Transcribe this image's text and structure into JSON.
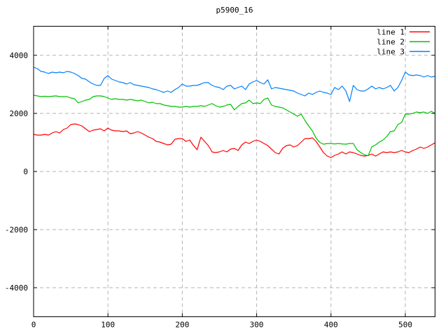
{
  "chart_data": {
    "type": "line",
    "title": "p5900_16",
    "xlabel": "",
    "ylabel": "",
    "xlim": [
      0,
      540
    ],
    "ylim": [
      -5000,
      5000
    ],
    "xticks": [
      0,
      100,
      200,
      300,
      400,
      500
    ],
    "yticks": [
      -4000,
      -2000,
      0,
      2000,
      4000
    ],
    "grid": true,
    "grid_color": "#b3b3b3",
    "border_color": "#000000",
    "background": "#ffffff",
    "legend_position": "top-right-inside",
    "x": [
      0,
      5,
      10,
      15,
      20,
      25,
      30,
      35,
      40,
      45,
      50,
      55,
      60,
      65,
      70,
      75,
      80,
      85,
      90,
      95,
      100,
      105,
      110,
      115,
      120,
      125,
      130,
      135,
      140,
      145,
      150,
      155,
      160,
      165,
      170,
      175,
      180,
      185,
      190,
      195,
      200,
      205,
      210,
      215,
      220,
      225,
      230,
      235,
      240,
      245,
      250,
      255,
      260,
      265,
      270,
      275,
      280,
      285,
      290,
      295,
      300,
      305,
      310,
      315,
      320,
      325,
      330,
      335,
      340,
      345,
      350,
      355,
      360,
      365,
      370,
      375,
      380,
      385,
      390,
      395,
      400,
      405,
      410,
      415,
      420,
      425,
      430,
      435,
      440,
      445,
      450,
      455,
      460,
      465,
      470,
      475,
      480,
      485,
      490,
      495,
      500,
      505,
      510,
      515,
      520,
      525,
      530,
      535,
      540
    ],
    "series": [
      {
        "name": "line 1",
        "color": "#ff0000",
        "values": [
          1277,
          1253,
          1253,
          1277,
          1253,
          1325,
          1373,
          1325,
          1446,
          1494,
          1614,
          1639,
          1614,
          1566,
          1470,
          1373,
          1422,
          1446,
          1470,
          1397,
          1494,
          1422,
          1397,
          1397,
          1373,
          1397,
          1301,
          1325,
          1373,
          1325,
          1253,
          1181,
          1132,
          1036,
          1012,
          964,
          916,
          940,
          1108,
          1132,
          1132,
          1036,
          1084,
          900,
          750,
          1180,
          1036,
          892,
          675,
          651,
          675,
          723,
          675,
          771,
          795,
          723,
          916,
          1012,
          964,
          1036,
          1084,
          1036,
          964,
          892,
          771,
          651,
          602,
          795,
          892,
          916,
          843,
          892,
          1012,
          1132,
          1132,
          1156,
          1036,
          843,
          651,
          530,
          482,
          554,
          602,
          675,
          602,
          675,
          651,
          602,
          554,
          530,
          554,
          602,
          530,
          602,
          675,
          651,
          675,
          651,
          675,
          723,
          675,
          651,
          723,
          771,
          843,
          795,
          843,
          916,
          988
        ]
      },
      {
        "name": "line 2",
        "color": "#00c000",
        "values": [
          2627,
          2602,
          2578,
          2590,
          2578,
          2590,
          2602,
          2578,
          2578,
          2578,
          2530,
          2506,
          2361,
          2410,
          2458,
          2482,
          2578,
          2602,
          2602,
          2578,
          2530,
          2482,
          2506,
          2482,
          2482,
          2458,
          2482,
          2458,
          2434,
          2458,
          2410,
          2361,
          2386,
          2337,
          2337,
          2289,
          2265,
          2241,
          2241,
          2217,
          2217,
          2241,
          2217,
          2241,
          2241,
          2265,
          2241,
          2289,
          2337,
          2265,
          2217,
          2241,
          2289,
          2313,
          2120,
          2241,
          2337,
          2361,
          2458,
          2337,
          2361,
          2337,
          2482,
          2530,
          2289,
          2241,
          2217,
          2193,
          2120,
          2048,
          1976,
          1904,
          1976,
          1759,
          1566,
          1398,
          1150,
          1000,
          940,
          964,
          964,
          950,
          964,
          950,
          940,
          964,
          964,
          750,
          651,
          580,
          540,
          850,
          916,
          1012,
          1084,
          1204,
          1373,
          1397,
          1614,
          1687,
          1976,
          1976,
          2000,
          2048,
          2024,
          2048,
          2000,
          2072,
          2000
        ]
      },
      {
        "name": "line 3",
        "color": "#0080ff",
        "values": [
          3590,
          3543,
          3446,
          3422,
          3374,
          3422,
          3398,
          3422,
          3398,
          3446,
          3422,
          3374,
          3301,
          3205,
          3181,
          3084,
          3012,
          2964,
          2964,
          3205,
          3301,
          3181,
          3133,
          3084,
          3060,
          3012,
          3060,
          2988,
          2964,
          2940,
          2916,
          2892,
          2844,
          2820,
          2771,
          2723,
          2771,
          2723,
          2820,
          2892,
          3013,
          2940,
          2940,
          2965,
          2965,
          3013,
          3061,
          3061,
          2965,
          2916,
          2892,
          2820,
          2940,
          2965,
          2844,
          2892,
          2940,
          2820,
          3013,
          3084,
          3133,
          3061,
          3013,
          3157,
          2844,
          2892,
          2868,
          2844,
          2820,
          2795,
          2771,
          2699,
          2651,
          2602,
          2699,
          2651,
          2723,
          2771,
          2723,
          2699,
          2651,
          2892,
          2820,
          2940,
          2771,
          2410,
          2964,
          2820,
          2771,
          2771,
          2844,
          2940,
          2844,
          2892,
          2844,
          2892,
          2964,
          2771,
          2892,
          3133,
          3422,
          3325,
          3301,
          3325,
          3301,
          3253,
          3301,
          3253,
          3277
        ]
      }
    ]
  }
}
